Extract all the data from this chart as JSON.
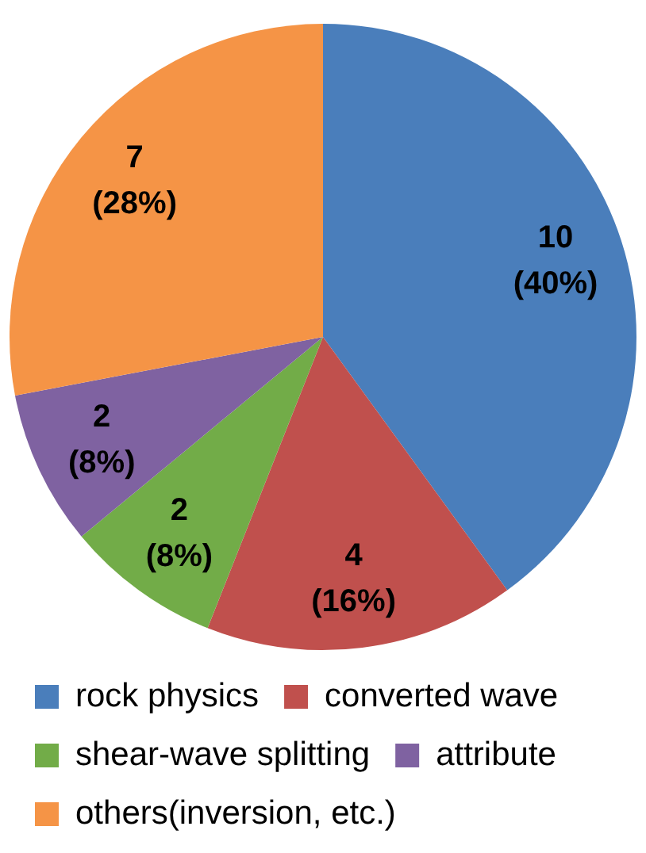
{
  "chart_data": {
    "type": "pie",
    "categories": [
      "rock physics",
      "converted wave",
      "shear-wave splitting",
      "attribute",
      "others(inversion, etc.)"
    ],
    "values": [
      10,
      4,
      2,
      2,
      7
    ],
    "colors": [
      "#4a7ebb",
      "#c0504d",
      "#72ac48",
      "#7f62a1",
      "#f59446"
    ],
    "value_labels": [
      "10\n(40%)",
      "4\n(16%)",
      "2\n(8%)",
      "2\n(8%)",
      "7\n(28%)"
    ],
    "legend": "bottom"
  }
}
